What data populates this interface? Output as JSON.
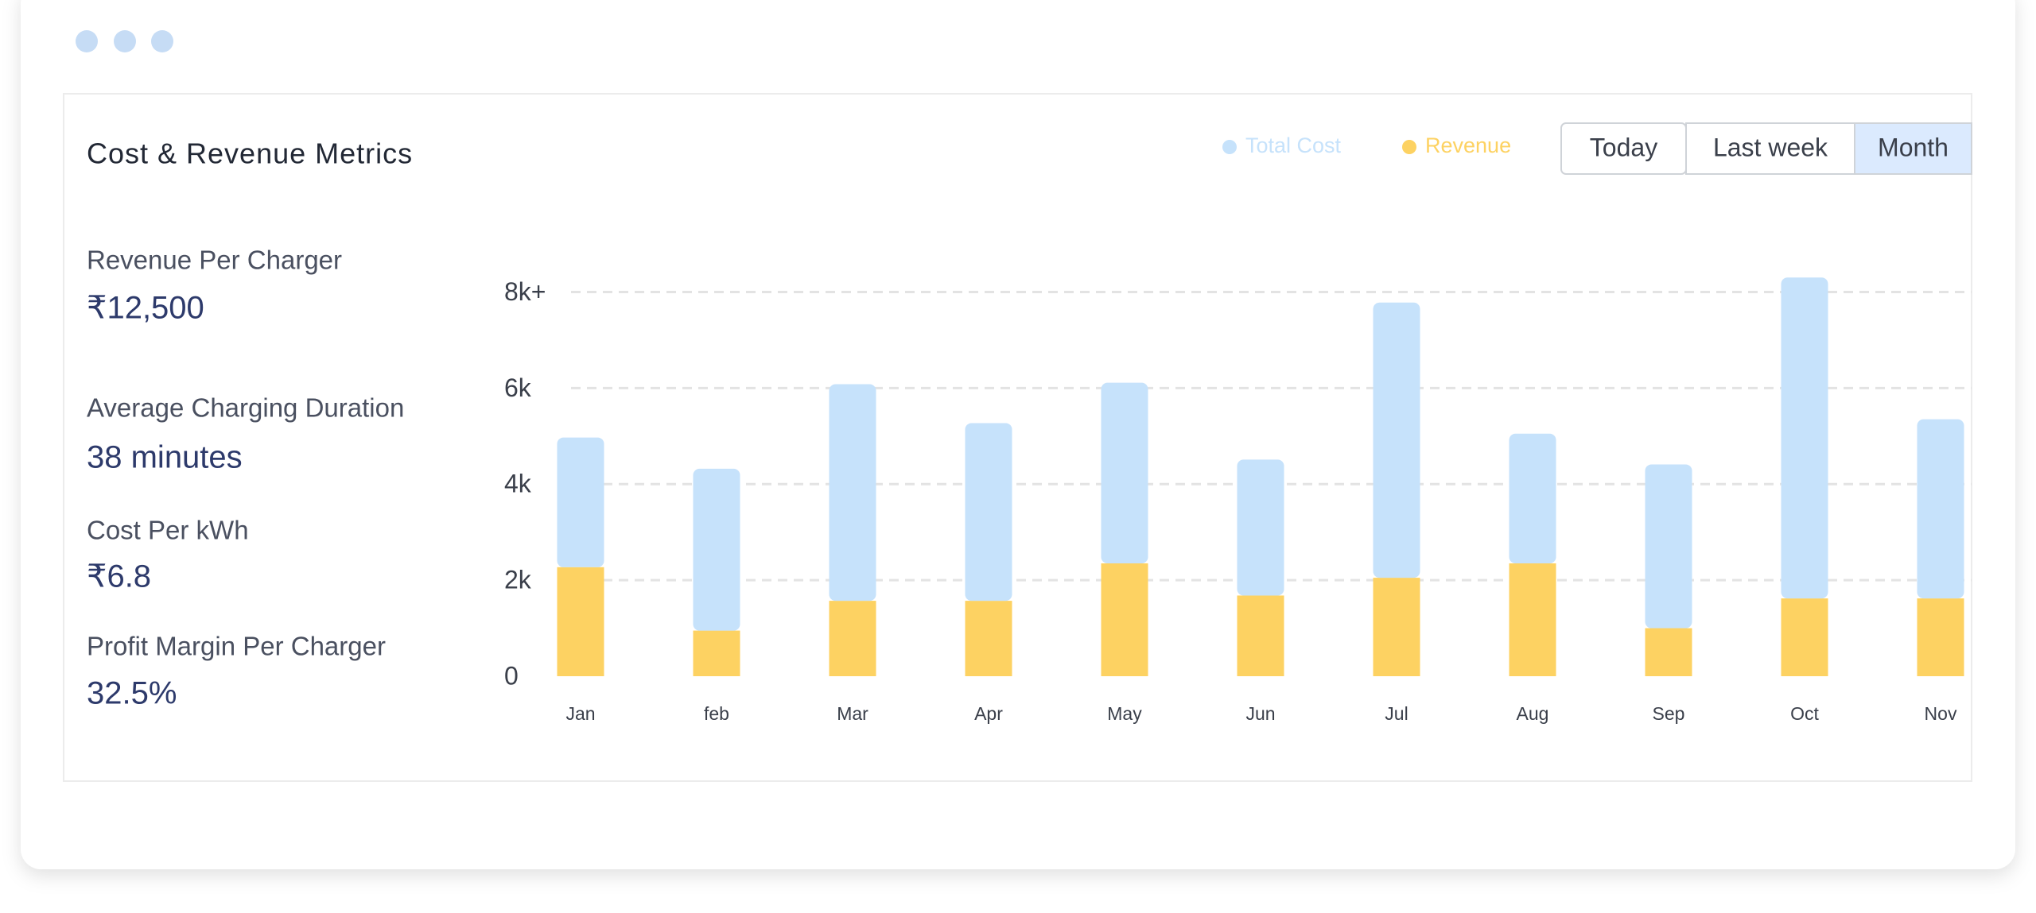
{
  "chart_data": {
    "type": "stacked-bar",
    "title": "Cost & Revenue Metrics",
    "categories": [
      "Jan",
      "feb",
      "Mar",
      "Apr",
      "May",
      "Jun",
      "Jul",
      "Aug",
      "Sep",
      "Oct",
      "Nov"
    ],
    "series": [
      {
        "name": "Revenue",
        "color": "#fdd262",
        "values": [
          2270,
          950,
          1570,
          1570,
          2350,
          1680,
          2050,
          2350,
          1000,
          1620,
          1620
        ]
      },
      {
        "name": "Total Cost",
        "color": "#c6e2fb",
        "values": [
          2700,
          3370,
          4510,
          3700,
          3760,
          2830,
          5730,
          2700,
          3410,
          6680,
          3730
        ]
      }
    ],
    "legend_order": [
      1,
      0
    ],
    "ylim": [
      0,
      9000
    ],
    "yticks": [
      {
        "value": 0,
        "label": "0"
      },
      {
        "value": 2000,
        "label": "2k"
      },
      {
        "value": 4000,
        "label": "4k"
      },
      {
        "value": 6000,
        "label": "6k"
      },
      {
        "value": 8000,
        "label": "8k+"
      }
    ],
    "grid": true
  },
  "metrics": [
    {
      "label": "Revenue Per Charger",
      "value": "₹12,500"
    },
    {
      "label": "Average Charging Duration",
      "value": "38 minutes"
    },
    {
      "label": "Cost Per kWh",
      "value": "₹6.8"
    },
    {
      "label": "Profit Margin Per Charger",
      "value": "32.5%"
    }
  ],
  "buttons": [
    "Today",
    "Last week",
    "Month"
  ],
  "active_button": 2
}
